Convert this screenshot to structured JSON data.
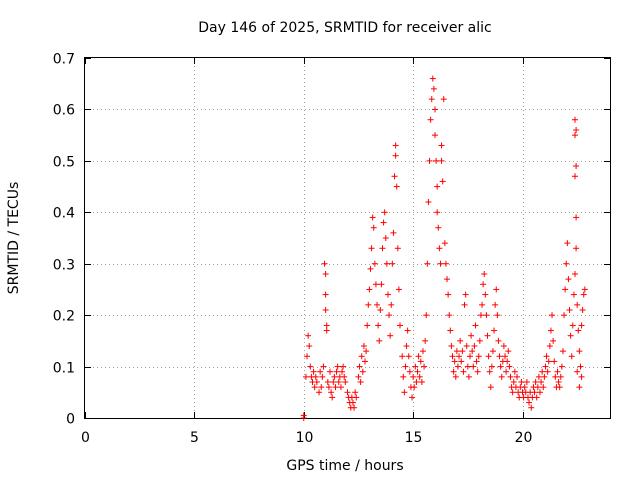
{
  "chart_data": {
    "type": "scatter",
    "title": "Day 146 of 2025, SRMTID for receiver alic",
    "xlabel": "GPS time / hours",
    "ylabel": "SRMTID / TECUs",
    "xlim": [
      0,
      24
    ],
    "ylim": [
      0,
      0.7
    ],
    "xticks": [
      0,
      5,
      10,
      15,
      20
    ],
    "xtick_labels": [
      "0",
      "5",
      "10",
      "15",
      "20"
    ],
    "yticks": [
      0,
      0.1,
      0.2,
      0.3,
      0.4,
      0.5,
      0.6,
      0.7
    ],
    "ytick_labels": [
      "0",
      "0.1",
      "0.2",
      "0.3",
      "0.4",
      "0.5",
      "0.6",
      "0.7"
    ],
    "grid": true,
    "marker": "+",
    "series": [
      {
        "name": "SRMTID",
        "color": "#ff0000",
        "points": [
          [
            10.0,
            0.0
          ],
          [
            10.0,
            0.005
          ],
          [
            10.1,
            0.08
          ],
          [
            10.15,
            0.12
          ],
          [
            10.2,
            0.16
          ],
          [
            10.25,
            0.14
          ],
          [
            10.3,
            0.1
          ],
          [
            10.35,
            0.08
          ],
          [
            10.4,
            0.07
          ],
          [
            10.45,
            0.09
          ],
          [
            10.5,
            0.06
          ],
          [
            10.55,
            0.08
          ],
          [
            10.6,
            0.07
          ],
          [
            10.7,
            0.05
          ],
          [
            10.75,
            0.09
          ],
          [
            10.8,
            0.06
          ],
          [
            10.85,
            0.08
          ],
          [
            10.9,
            0.1
          ],
          [
            10.95,
            0.3
          ],
          [
            11.0,
            0.28
          ],
          [
            11.0,
            0.24
          ],
          [
            11.0,
            0.21
          ],
          [
            11.05,
            0.18
          ],
          [
            11.05,
            0.17
          ],
          [
            11.1,
            0.07
          ],
          [
            11.15,
            0.06
          ],
          [
            11.2,
            0.09
          ],
          [
            11.25,
            0.05
          ],
          [
            11.3,
            0.04
          ],
          [
            11.35,
            0.07
          ],
          [
            11.4,
            0.08
          ],
          [
            11.45,
            0.06
          ],
          [
            11.5,
            0.09
          ],
          [
            11.55,
            0.1
          ],
          [
            11.6,
            0.07
          ],
          [
            11.65,
            0.08
          ],
          [
            11.7,
            0.06
          ],
          [
            11.75,
            0.09
          ],
          [
            11.8,
            0.1
          ],
          [
            11.85,
            0.08
          ],
          [
            11.9,
            0.07
          ],
          [
            12.0,
            0.05
          ],
          [
            12.05,
            0.04
          ],
          [
            12.1,
            0.03
          ],
          [
            12.15,
            0.02
          ],
          [
            12.2,
            0.04
          ],
          [
            12.25,
            0.03
          ],
          [
            12.3,
            0.02
          ],
          [
            12.35,
            0.05
          ],
          [
            12.4,
            0.04
          ],
          [
            12.5,
            0.08
          ],
          [
            12.55,
            0.1
          ],
          [
            12.6,
            0.07
          ],
          [
            12.65,
            0.12
          ],
          [
            12.7,
            0.09
          ],
          [
            12.75,
            0.14
          ],
          [
            12.8,
            0.11
          ],
          [
            12.85,
            0.13
          ],
          [
            12.9,
            0.18
          ],
          [
            12.95,
            0.22
          ],
          [
            13.0,
            0.25
          ],
          [
            13.05,
            0.29
          ],
          [
            13.1,
            0.33
          ],
          [
            13.15,
            0.39
          ],
          [
            13.2,
            0.37
          ],
          [
            13.25,
            0.3
          ],
          [
            13.3,
            0.26
          ],
          [
            13.35,
            0.22
          ],
          [
            13.4,
            0.18
          ],
          [
            13.45,
            0.15
          ],
          [
            13.5,
            0.21
          ],
          [
            13.55,
            0.26
          ],
          [
            13.6,
            0.33
          ],
          [
            13.65,
            0.38
          ],
          [
            13.7,
            0.4
          ],
          [
            13.75,
            0.35
          ],
          [
            13.8,
            0.3
          ],
          [
            13.85,
            0.24
          ],
          [
            13.9,
            0.2
          ],
          [
            13.95,
            0.16
          ],
          [
            14.0,
            0.22
          ],
          [
            14.05,
            0.3
          ],
          [
            14.1,
            0.36
          ],
          [
            14.15,
            0.47
          ],
          [
            14.2,
            0.51
          ],
          [
            14.2,
            0.53
          ],
          [
            14.25,
            0.45
          ],
          [
            14.3,
            0.33
          ],
          [
            14.35,
            0.25
          ],
          [
            14.4,
            0.18
          ],
          [
            14.5,
            0.12
          ],
          [
            14.55,
            0.08
          ],
          [
            14.6,
            0.05
          ],
          [
            14.65,
            0.1
          ],
          [
            14.7,
            0.14
          ],
          [
            14.75,
            0.17
          ],
          [
            14.8,
            0.12
          ],
          [
            14.85,
            0.09
          ],
          [
            14.9,
            0.06
          ],
          [
            14.95,
            0.04
          ],
          [
            15.0,
            0.08
          ],
          [
            15.05,
            0.06
          ],
          [
            15.1,
            0.1
          ],
          [
            15.15,
            0.07
          ],
          [
            15.2,
            0.09
          ],
          [
            15.25,
            0.12
          ],
          [
            15.3,
            0.08
          ],
          [
            15.35,
            0.11
          ],
          [
            15.4,
            0.07
          ],
          [
            15.45,
            0.13
          ],
          [
            15.5,
            0.1
          ],
          [
            15.55,
            0.15
          ],
          [
            15.6,
            0.2
          ],
          [
            15.65,
            0.3
          ],
          [
            15.7,
            0.42
          ],
          [
            15.75,
            0.5
          ],
          [
            15.8,
            0.58
          ],
          [
            15.85,
            0.62
          ],
          [
            15.9,
            0.66
          ],
          [
            15.95,
            0.64
          ],
          [
            16.0,
            0.6
          ],
          [
            16.0,
            0.55
          ],
          [
            16.05,
            0.5
          ],
          [
            16.1,
            0.45
          ],
          [
            16.1,
            0.4
          ],
          [
            16.15,
            0.37
          ],
          [
            16.2,
            0.33
          ],
          [
            16.25,
            0.3
          ],
          [
            16.3,
            0.5
          ],
          [
            16.3,
            0.53
          ],
          [
            16.35,
            0.46
          ],
          [
            16.4,
            0.62
          ],
          [
            16.45,
            0.34
          ],
          [
            16.5,
            0.3
          ],
          [
            16.55,
            0.27
          ],
          [
            16.6,
            0.24
          ],
          [
            16.65,
            0.2
          ],
          [
            16.7,
            0.17
          ],
          [
            16.75,
            0.14
          ],
          [
            16.8,
            0.12
          ],
          [
            16.85,
            0.09
          ],
          [
            16.9,
            0.11
          ],
          [
            16.95,
            0.08
          ],
          [
            17.0,
            0.13
          ],
          [
            17.05,
            0.1
          ],
          [
            17.1,
            0.12
          ],
          [
            17.15,
            0.15
          ],
          [
            17.2,
            0.11
          ],
          [
            17.25,
            0.13
          ],
          [
            17.3,
            0.09
          ],
          [
            17.35,
            0.22
          ],
          [
            17.4,
            0.24
          ],
          [
            17.45,
            0.14
          ],
          [
            17.5,
            0.1
          ],
          [
            17.55,
            0.08
          ],
          [
            17.6,
            0.12
          ],
          [
            17.65,
            0.16
          ],
          [
            17.7,
            0.13
          ],
          [
            17.75,
            0.1
          ],
          [
            17.8,
            0.14
          ],
          [
            17.85,
            0.18
          ],
          [
            17.9,
            0.11
          ],
          [
            17.95,
            0.09
          ],
          [
            18.0,
            0.12
          ],
          [
            18.05,
            0.15
          ],
          [
            18.1,
            0.2
          ],
          [
            18.15,
            0.22
          ],
          [
            18.2,
            0.26
          ],
          [
            18.25,
            0.28
          ],
          [
            18.3,
            0.24
          ],
          [
            18.35,
            0.2
          ],
          [
            18.4,
            0.16
          ],
          [
            18.45,
            0.12
          ],
          [
            18.5,
            0.09
          ],
          [
            18.55,
            0.06
          ],
          [
            18.6,
            0.1
          ],
          [
            18.65,
            0.13
          ],
          [
            18.7,
            0.17
          ],
          [
            18.75,
            0.22
          ],
          [
            18.8,
            0.25
          ],
          [
            18.85,
            0.2
          ],
          [
            18.9,
            0.15
          ],
          [
            18.95,
            0.12
          ],
          [
            19.0,
            0.1
          ],
          [
            19.05,
            0.08
          ],
          [
            19.1,
            0.11
          ],
          [
            19.15,
            0.14
          ],
          [
            19.2,
            0.12
          ],
          [
            19.25,
            0.09
          ],
          [
            19.3,
            0.11
          ],
          [
            19.35,
            0.13
          ],
          [
            19.4,
            0.1
          ],
          [
            19.45,
            0.08
          ],
          [
            19.5,
            0.06
          ],
          [
            19.55,
            0.05
          ],
          [
            19.6,
            0.07
          ],
          [
            19.65,
            0.09
          ],
          [
            19.7,
            0.06
          ],
          [
            19.75,
            0.08
          ],
          [
            19.8,
            0.05
          ],
          [
            19.85,
            0.04
          ],
          [
            19.9,
            0.06
          ],
          [
            19.95,
            0.07
          ],
          [
            20.0,
            0.05
          ],
          [
            20.05,
            0.04
          ],
          [
            20.1,
            0.06
          ],
          [
            20.15,
            0.05
          ],
          [
            20.2,
            0.07
          ],
          [
            20.25,
            0.04
          ],
          [
            20.3,
            0.03
          ],
          [
            20.35,
            0.05
          ],
          [
            20.4,
            0.02
          ],
          [
            20.45,
            0.04
          ],
          [
            20.5,
            0.06
          ],
          [
            20.55,
            0.05
          ],
          [
            20.6,
            0.07
          ],
          [
            20.65,
            0.04
          ],
          [
            20.7,
            0.06
          ],
          [
            20.75,
            0.08
          ],
          [
            20.8,
            0.05
          ],
          [
            20.85,
            0.07
          ],
          [
            20.9,
            0.09
          ],
          [
            20.95,
            0.06
          ],
          [
            21.0,
            0.08
          ],
          [
            21.05,
            0.1
          ],
          [
            21.1,
            0.12
          ],
          [
            21.15,
            0.09
          ],
          [
            21.2,
            0.11
          ],
          [
            21.25,
            0.14
          ],
          [
            21.3,
            0.17
          ],
          [
            21.35,
            0.2
          ],
          [
            21.4,
            0.15
          ],
          [
            21.45,
            0.11
          ],
          [
            21.5,
            0.08
          ],
          [
            21.55,
            0.06
          ],
          [
            21.6,
            0.09
          ],
          [
            21.65,
            0.07
          ],
          [
            21.7,
            0.06
          ],
          [
            21.75,
            0.08
          ],
          [
            21.8,
            0.1
          ],
          [
            21.85,
            0.13
          ],
          [
            21.9,
            0.2
          ],
          [
            21.95,
            0.25
          ],
          [
            22.0,
            0.3
          ],
          [
            22.05,
            0.34
          ],
          [
            22.1,
            0.27
          ],
          [
            22.15,
            0.21
          ],
          [
            22.2,
            0.16
          ],
          [
            22.25,
            0.12
          ],
          [
            22.3,
            0.18
          ],
          [
            22.35,
            0.24
          ],
          [
            22.4,
            0.28
          ],
          [
            22.45,
            0.33
          ],
          [
            22.45,
            0.39
          ],
          [
            22.4,
            0.47
          ],
          [
            22.45,
            0.49
          ],
          [
            22.4,
            0.55
          ],
          [
            22.45,
            0.56
          ],
          [
            22.4,
            0.58
          ],
          [
            22.5,
            0.22
          ],
          [
            22.55,
            0.17
          ],
          [
            22.6,
            0.13
          ],
          [
            22.65,
            0.1
          ],
          [
            22.7,
            0.08
          ],
          [
            22.75,
            0.21
          ],
          [
            22.8,
            0.24
          ],
          [
            22.85,
            0.25
          ],
          [
            22.7,
            0.18
          ],
          [
            22.6,
            0.06
          ],
          [
            22.5,
            0.09
          ]
        ]
      }
    ]
  }
}
